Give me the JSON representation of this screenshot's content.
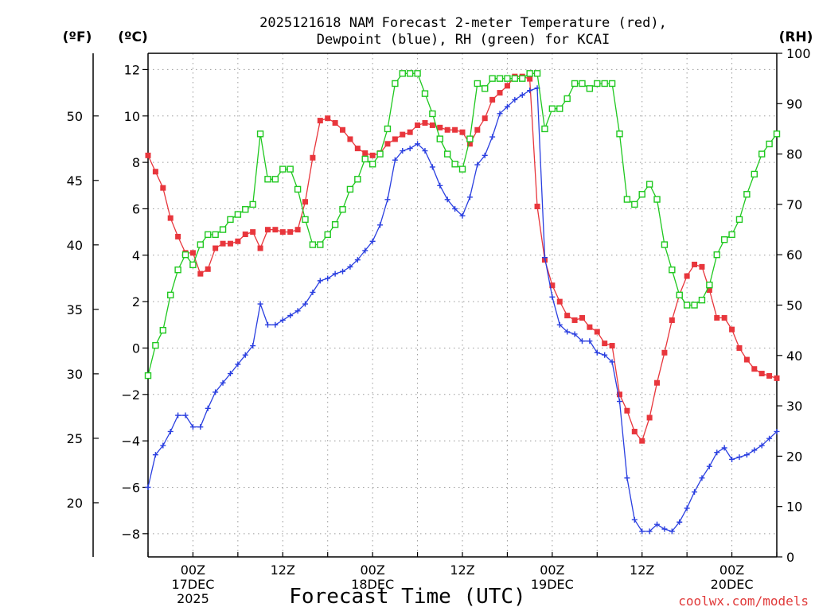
{
  "chart_data": {
    "type": "line",
    "title": [
      "2025121618 NAM Forecast 2-meter Temperature (red),",
      "Dewpoint (blue), RH (green) for KCAI"
    ],
    "xlabel": "Forecast Time (UTC)",
    "units": {
      "f": "(ºF)",
      "c": "(ºC)",
      "rh": "(RH)"
    },
    "credit": "coolwx.com/models",
    "ylim_c": [
      -9.0,
      12.7
    ],
    "ylim_rh": [
      0,
      100
    ],
    "x_range_hours": [
      0,
      84
    ],
    "f_ticks": [
      "20",
      "25",
      "30",
      "35",
      "40",
      "45",
      "50"
    ],
    "c_ticks": [
      "-8",
      "-6",
      "-4",
      "-2",
      "0",
      "2",
      "4",
      "6",
      "8",
      "10",
      "12"
    ],
    "rh_ticks": [
      "0",
      "10",
      "20",
      "30",
      "40",
      "50",
      "60",
      "70",
      "80",
      "90",
      "100"
    ],
    "x_ticks": [
      {
        "hour": 6,
        "lines": [
          "00Z",
          "17DEC",
          "2025"
        ]
      },
      {
        "hour": 18,
        "lines": [
          "12Z"
        ]
      },
      {
        "hour": 30,
        "lines": [
          "00Z",
          "18DEC"
        ]
      },
      {
        "hour": 42,
        "lines": [
          "12Z"
        ]
      },
      {
        "hour": 54,
        "lines": [
          "00Z",
          "19DEC"
        ]
      },
      {
        "hour": 66,
        "lines": [
          "12Z"
        ]
      },
      {
        "hour": 78,
        "lines": [
          "00Z",
          "20DEC"
        ]
      }
    ],
    "series": [
      {
        "name": "Temperature",
        "units": "C",
        "color": "#e8363c",
        "marker": "filled-square",
        "x": [
          0,
          1,
          2,
          3,
          4,
          5,
          6,
          7,
          8,
          9,
          10,
          11,
          12,
          13,
          14,
          15,
          16,
          17,
          18,
          19,
          20,
          21,
          22,
          23,
          24,
          25,
          26,
          27,
          28,
          29,
          30,
          31,
          32,
          33,
          34,
          35,
          36,
          37,
          38,
          39,
          40,
          41,
          42,
          43,
          44,
          45,
          46,
          47,
          48,
          49,
          50,
          51,
          52,
          53,
          54,
          55,
          56,
          57,
          58,
          59,
          60,
          61,
          62,
          63,
          64,
          65,
          66,
          67,
          68,
          69,
          70,
          71,
          72,
          73,
          74,
          75,
          76,
          77,
          78,
          79,
          80,
          81,
          82,
          83,
          84
        ],
        "values": [
          8.3,
          7.6,
          6.9,
          5.6,
          4.8,
          4.1,
          4.1,
          3.2,
          3.4,
          4.3,
          4.5,
          4.5,
          4.6,
          4.9,
          5.0,
          4.3,
          5.1,
          5.1,
          5.0,
          5.0,
          5.1,
          6.3,
          8.2,
          9.8,
          9.9,
          9.7,
          9.4,
          9.0,
          8.6,
          8.4,
          8.3,
          8.4,
          8.8,
          9.0,
          9.2,
          9.3,
          9.6,
          9.7,
          9.6,
          9.5,
          9.4,
          9.4,
          9.3,
          8.8,
          9.4,
          9.9,
          10.7,
          11.0,
          11.3,
          11.7,
          11.7,
          11.6,
          6.1,
          3.8,
          2.7,
          2.0,
          1.4,
          1.2,
          1.3,
          0.9,
          0.7,
          0.2,
          0.1,
          -2.0,
          -2.7,
          -3.6,
          -4.0,
          -3.0,
          -1.5,
          -0.2,
          1.2,
          2.3,
          3.1,
          3.6,
          3.5,
          2.5,
          1.3,
          1.3,
          0.8,
          0.0,
          -0.5,
          -0.9,
          -1.1,
          -1.2,
          -1.3
        ]
      },
      {
        "name": "Dewpoint",
        "units": "C",
        "color": "#2a3fe0",
        "marker": "plus",
        "x": [
          0,
          1,
          2,
          3,
          4,
          5,
          6,
          7,
          8,
          9,
          10,
          11,
          12,
          13,
          14,
          15,
          16,
          17,
          18,
          19,
          20,
          21,
          22,
          23,
          24,
          25,
          26,
          27,
          28,
          29,
          30,
          31,
          32,
          33,
          34,
          35,
          36,
          37,
          38,
          39,
          40,
          41,
          42,
          43,
          44,
          45,
          46,
          47,
          48,
          49,
          50,
          51,
          52,
          53,
          54,
          55,
          56,
          57,
          58,
          59,
          60,
          61,
          62,
          63,
          64,
          65,
          66,
          67,
          68,
          69,
          70,
          71,
          72,
          73,
          74,
          75,
          76,
          77,
          78,
          79,
          80,
          81,
          82,
          83,
          84
        ],
        "values": [
          -6.0,
          -4.6,
          -4.2,
          -3.6,
          -2.9,
          -2.9,
          -3.4,
          -3.4,
          -2.6,
          -1.9,
          -1.5,
          -1.1,
          -0.7,
          -0.3,
          0.1,
          1.9,
          1.0,
          1.0,
          1.2,
          1.4,
          1.6,
          1.9,
          2.4,
          2.9,
          3.0,
          3.2,
          3.3,
          3.5,
          3.8,
          4.2,
          4.6,
          5.3,
          6.4,
          8.1,
          8.5,
          8.6,
          8.8,
          8.5,
          7.8,
          7.0,
          6.4,
          6.0,
          5.7,
          6.5,
          7.9,
          8.3,
          9.1,
          10.1,
          10.4,
          10.7,
          10.9,
          11.1,
          11.2,
          3.9,
          2.2,
          1.0,
          0.7,
          0.6,
          0.3,
          0.3,
          -0.2,
          -0.3,
          -0.6,
          -2.3,
          -5.6,
          -7.4,
          -7.9,
          -7.9,
          -7.6,
          -7.8,
          -7.9,
          -7.5,
          -6.9,
          -6.2,
          -5.6,
          -5.1,
          -4.5,
          -4.3,
          -4.8,
          -4.7,
          -4.6,
          -4.4,
          -4.2,
          -3.9,
          -3.6
        ]
      },
      {
        "name": "RH",
        "units": "%",
        "color": "#1fc81f",
        "marker": "open-square",
        "x": [
          0,
          1,
          2,
          3,
          4,
          5,
          6,
          7,
          8,
          9,
          10,
          11,
          12,
          13,
          14,
          15,
          16,
          17,
          18,
          19,
          20,
          21,
          22,
          23,
          24,
          25,
          26,
          27,
          28,
          29,
          30,
          31,
          32,
          33,
          34,
          35,
          36,
          37,
          38,
          39,
          40,
          41,
          42,
          43,
          44,
          45,
          46,
          47,
          48,
          49,
          50,
          51,
          52,
          53,
          54,
          55,
          56,
          57,
          58,
          59,
          60,
          61,
          62,
          63,
          64,
          65,
          66,
          67,
          68,
          69,
          70,
          71,
          72,
          73,
          74,
          75,
          76,
          77,
          78,
          79,
          80,
          81,
          82,
          83,
          84
        ],
        "values": [
          36,
          42,
          45,
          52,
          57,
          60,
          58,
          62,
          64,
          64,
          65,
          67,
          68,
          69,
          70,
          84,
          75,
          75,
          77,
          77,
          73,
          67,
          62,
          62,
          64,
          66,
          69,
          73,
          75,
          79,
          78,
          80,
          85,
          94,
          96,
          96,
          96,
          92,
          88,
          83,
          80,
          78,
          77,
          83,
          94,
          93,
          95,
          95,
          95,
          95,
          95,
          96,
          96,
          85,
          89,
          89,
          91,
          94,
          94,
          93,
          94,
          94,
          94,
          84,
          71,
          70,
          72,
          74,
          71,
          62,
          57,
          52,
          50,
          50,
          51,
          54,
          60,
          63,
          64,
          67,
          72,
          76,
          80,
          82,
          84
        ]
      }
    ]
  }
}
